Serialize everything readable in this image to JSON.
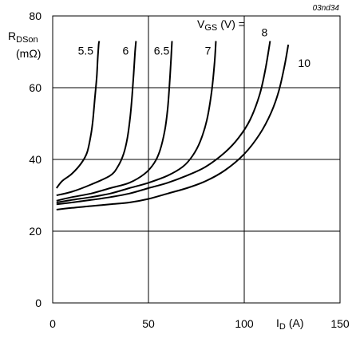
{
  "doc_id": "03nd34",
  "chart_data": {
    "type": "line",
    "xlabel_main": "I",
    "xlabel_sub": "D",
    "xlabel_unit": "(A)",
    "ylabel_main": "R",
    "ylabel_sub": "DSon",
    "ylabel_unit": "(mΩ)",
    "legend_prefix_main": "V",
    "legend_prefix_sub": "GS",
    "legend_prefix_unit": "(V) =",
    "xlim": [
      0,
      150
    ],
    "ylim": [
      0,
      80
    ],
    "xticks": [
      "0",
      "50",
      "100",
      "150"
    ],
    "yticks": [
      "0",
      "20",
      "40",
      "60",
      "80"
    ],
    "grid": true,
    "series": [
      {
        "name": "5.5",
        "x": [
          2,
          5,
          10,
          15,
          18,
          20,
          21,
          22,
          23,
          23.5,
          24,
          24.3
        ],
        "y": [
          32,
          34,
          36,
          39,
          42,
          47,
          51,
          57,
          63,
          68,
          72,
          73
        ]
      },
      {
        "name": "6",
        "x": [
          2,
          10,
          20,
          30,
          34,
          37,
          39,
          40.5,
          41.5,
          42.3,
          43,
          43.5
        ],
        "y": [
          30,
          31,
          33,
          35.5,
          38,
          41.5,
          46,
          52,
          58,
          64,
          70,
          73
        ]
      },
      {
        "name": "6.5",
        "x": [
          2,
          10,
          20,
          30,
          40,
          48,
          53,
          56,
          58.5,
          60,
          61,
          61.8,
          62.3
        ],
        "y": [
          28.5,
          29.5,
          30.5,
          32,
          33.5,
          36,
          39,
          42.5,
          48,
          54,
          61,
          68,
          73
        ]
      },
      {
        "name": "7",
        "x": [
          2,
          10,
          20,
          30,
          40,
          50,
          60,
          68,
          73,
          77,
          80.5,
          83,
          84.5,
          85.2
        ],
        "y": [
          28,
          28.7,
          29.5,
          30.5,
          32,
          33.5,
          35.5,
          38,
          41,
          45,
          51,
          59,
          67,
          73
        ]
      },
      {
        "name": "8",
        "x": [
          2,
          10,
          20,
          30,
          40,
          50,
          60,
          70,
          80,
          90,
          97,
          103,
          108,
          111,
          113.5
        ],
        "y": [
          27.5,
          28,
          28.7,
          29.5,
          30.5,
          32,
          33.5,
          35.5,
          38,
          42,
          46,
          51,
          58,
          65,
          73
        ]
      },
      {
        "name": "10",
        "x": [
          2,
          10,
          20,
          30,
          40,
          50,
          60,
          70,
          80,
          90,
          100,
          108,
          114,
          118,
          121,
          123
        ],
        "y": [
          26,
          26.5,
          27,
          27.5,
          28,
          29,
          30.5,
          32,
          34,
          37,
          41.5,
          47,
          53,
          59,
          66,
          72
        ]
      }
    ]
  }
}
